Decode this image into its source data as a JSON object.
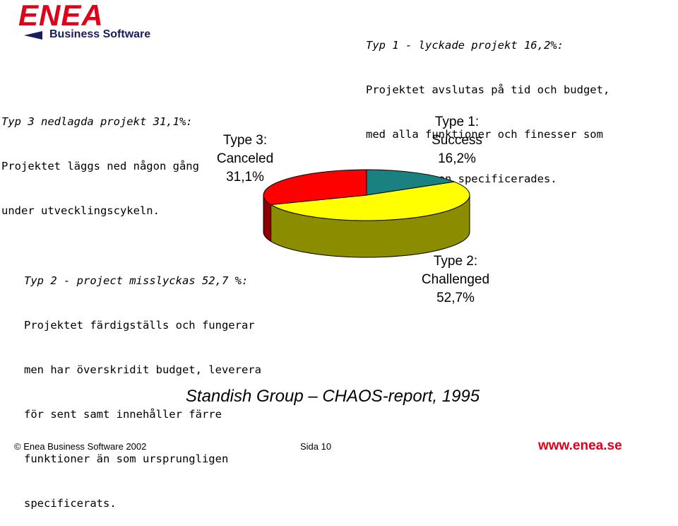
{
  "brand": {
    "name": "ENEA",
    "tagline": "Business Software"
  },
  "type1_desc": {
    "heading": "Typ 1 - lyckade projekt 16,2%:",
    "lines": [
      "Projektet avslutas på tid och budget,",
      "med alla funktioner och finesser som",
      "ursprungligen specificerades."
    ]
  },
  "type3_desc": {
    "heading": "Typ 3 nedlagda projekt 31,1%:",
    "lines": [
      "Projektet läggs ned någon gång",
      "under utvecklingscykeln."
    ]
  },
  "type2_desc": {
    "heading": "Typ 2 - project misslyckas 52,7 %:",
    "lines": [
      "Projektet färdigställs och fungerar",
      "men har överskridit budget, leverera",
      "för sent samt innehåller färre",
      "funktioner än som ursprungligen",
      "specificerats."
    ]
  },
  "chart_data": {
    "type": "pie",
    "title": "Standish Group – CHAOS-report, 1995",
    "slices": [
      {
        "label_lines": [
          "Type 1:",
          "Success",
          "16,2%"
        ],
        "value": 16.2,
        "color": "#1a8080"
      },
      {
        "label_lines": [
          "Type 2:",
          "Challenged",
          "52,7%"
        ],
        "value": 52.7,
        "color": "#ffff00"
      },
      {
        "label_lines": [
          "Type 3:",
          "Canceled",
          "31,1%"
        ],
        "value": 31.1,
        "color": "#ff0000"
      }
    ]
  },
  "footer": {
    "copyright": "©  Enea Business Software 2002",
    "page": "Sida 10",
    "url": "www.enea.se"
  }
}
